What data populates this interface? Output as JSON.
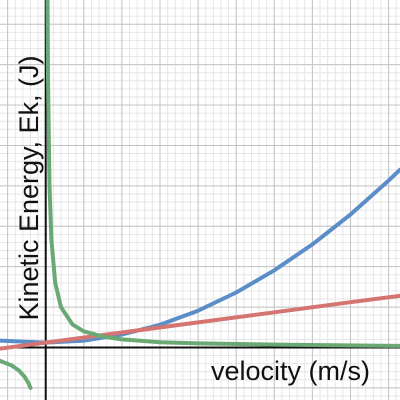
{
  "chart_data": {
    "type": "line",
    "title": "",
    "xlabel": "velocity (m/s)",
    "ylabel": "Kinetic Energy, Ek, (J)",
    "xlim": [
      -1.2,
      9.3
    ],
    "ylim": [
      -1.3,
      8.6
    ],
    "grid": true,
    "minor_grid": true,
    "axis_color": "#111111",
    "series": [
      {
        "curve": "quadratic",
        "color": "#5b8ec8",
        "x": [
          -1.2,
          0,
          1,
          2,
          3,
          4,
          5,
          6,
          7,
          8,
          9,
          9.3
        ],
        "y": [
          0.17,
          0.12,
          0.17,
          0.32,
          0.56,
          0.91,
          1.36,
          1.91,
          2.55,
          3.29,
          4.13,
          4.4
        ]
      },
      {
        "curve": "linear",
        "color": "#d47571",
        "x": [
          -1.2,
          0,
          2,
          4,
          6,
          8,
          9.3
        ],
        "y": [
          -0.03,
          0.12,
          0.37,
          0.62,
          0.87,
          1.12,
          1.28
        ]
      },
      {
        "curve": "reciprocal",
        "color": "#6aa974",
        "x": [
          0.04,
          0.06,
          0.1,
          0.15,
          0.25,
          0.4,
          0.7,
          1,
          1.5,
          2,
          3,
          4,
          6,
          9.3
        ],
        "y": [
          10.0,
          6.67,
          4.0,
          2.67,
          1.6,
          1.0,
          0.57,
          0.4,
          0.27,
          0.2,
          0.13,
          0.1,
          0.07,
          0.04
        ]
      },
      {
        "curve": "reciprocal-negative",
        "color": "#6aa974",
        "x": [
          -1.2,
          -0.9,
          -0.7,
          -0.55,
          -0.45,
          -0.4
        ],
        "y": [
          -0.33,
          -0.44,
          -0.57,
          -0.73,
          -0.89,
          -1.0
        ]
      }
    ]
  }
}
